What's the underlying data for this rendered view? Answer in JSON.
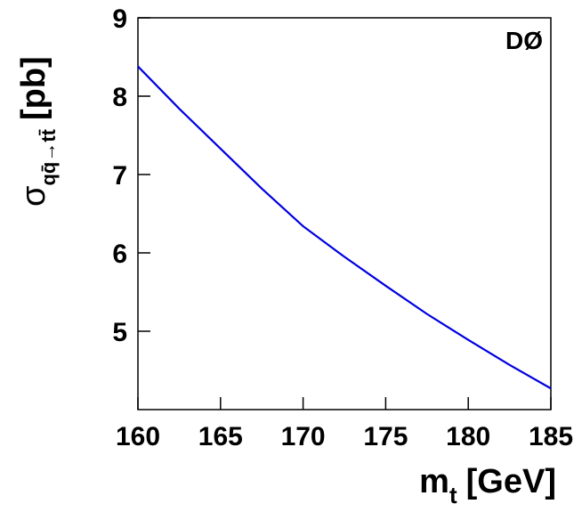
{
  "chart_data": {
    "type": "line",
    "x": [
      160,
      162.5,
      165,
      167.5,
      170,
      172.5,
      175,
      177.5,
      180,
      182.5,
      185
    ],
    "series": [
      {
        "color": "#0000e0",
        "values": [
          8.38,
          7.84,
          7.33,
          6.82,
          6.34,
          5.95,
          5.58,
          5.22,
          4.89,
          4.57,
          4.27
        ]
      }
    ],
    "xlim": [
      160,
      185
    ],
    "xticks": [
      160,
      165,
      170,
      175,
      180,
      185
    ],
    "ylim": [
      4,
      9
    ],
    "yticks": [
      5,
      6,
      7,
      8,
      9
    ],
    "x_label_symbol": "m",
    "x_label_subscript": "t",
    "x_label_unit": "[GeV]",
    "y_label_symbol": "σ",
    "y_label_subscript": "qq̄→tt̄",
    "y_label_unit": "[pb]",
    "annotation": "DØ"
  }
}
